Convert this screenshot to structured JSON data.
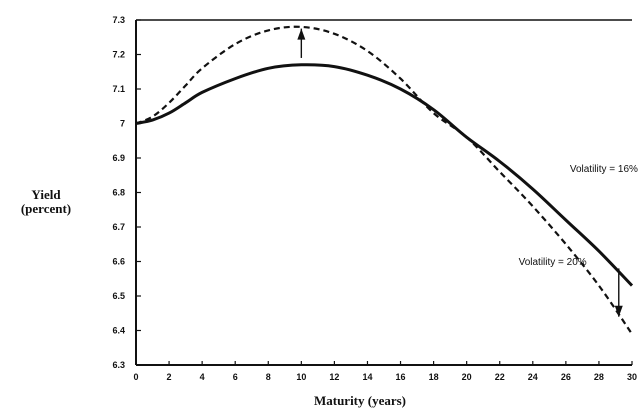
{
  "chart_data": {
    "type": "line",
    "xlabel": "Maturity (years)",
    "ylabel_line1": "Yield",
    "ylabel_line2": "(percent)",
    "xlim": [
      0,
      30
    ],
    "ylim": [
      6.3,
      7.3
    ],
    "xticks": [
      0,
      2,
      4,
      6,
      8,
      10,
      12,
      14,
      16,
      18,
      20,
      22,
      24,
      26,
      28,
      30
    ],
    "yticks": [
      6.3,
      6.4,
      6.5,
      6.6,
      6.7,
      6.8,
      6.9,
      7,
      7.1,
      7.2,
      7.3
    ],
    "ytick_labels": [
      "6.3",
      "6.4",
      "6.5",
      "6.6",
      "6.7",
      "6.8",
      "6.9",
      "7",
      "7.1",
      "7.2",
      "7.3"
    ],
    "grid": false,
    "series": [
      {
        "name": "Volatility = 16%",
        "style": "solid",
        "x": [
          0,
          1,
          2,
          3,
          4,
          6,
          8,
          10,
          12,
          14,
          16,
          18,
          20,
          22,
          24,
          26,
          28,
          30
        ],
        "y": [
          7.0,
          7.01,
          7.03,
          7.06,
          7.09,
          7.13,
          7.16,
          7.17,
          7.165,
          7.14,
          7.1,
          7.04,
          6.96,
          6.89,
          6.81,
          6.72,
          6.63,
          6.53
        ]
      },
      {
        "name": "Volatility = 20%",
        "style": "dashed",
        "x": [
          0,
          1,
          2,
          3,
          4,
          6,
          8,
          10,
          12,
          14,
          16,
          18,
          20,
          22,
          24,
          26,
          28,
          30
        ],
        "y": [
          7.0,
          7.02,
          7.06,
          7.11,
          7.16,
          7.23,
          7.27,
          7.28,
          7.26,
          7.21,
          7.13,
          7.03,
          6.96,
          6.86,
          6.76,
          6.65,
          6.53,
          6.39
        ]
      }
    ],
    "annotations": [
      {
        "text": "Volatility = 16%",
        "x": 28.3,
        "y": 6.86
      },
      {
        "text": "Volatility = 20%",
        "x": 25.2,
        "y": 6.59
      }
    ],
    "arrows": [
      {
        "x": 10,
        "from_y": 7.19,
        "to_y": 7.275,
        "direction": "up"
      },
      {
        "x": 29.2,
        "from_y": 6.58,
        "to_y": 6.44,
        "direction": "down"
      }
    ]
  }
}
